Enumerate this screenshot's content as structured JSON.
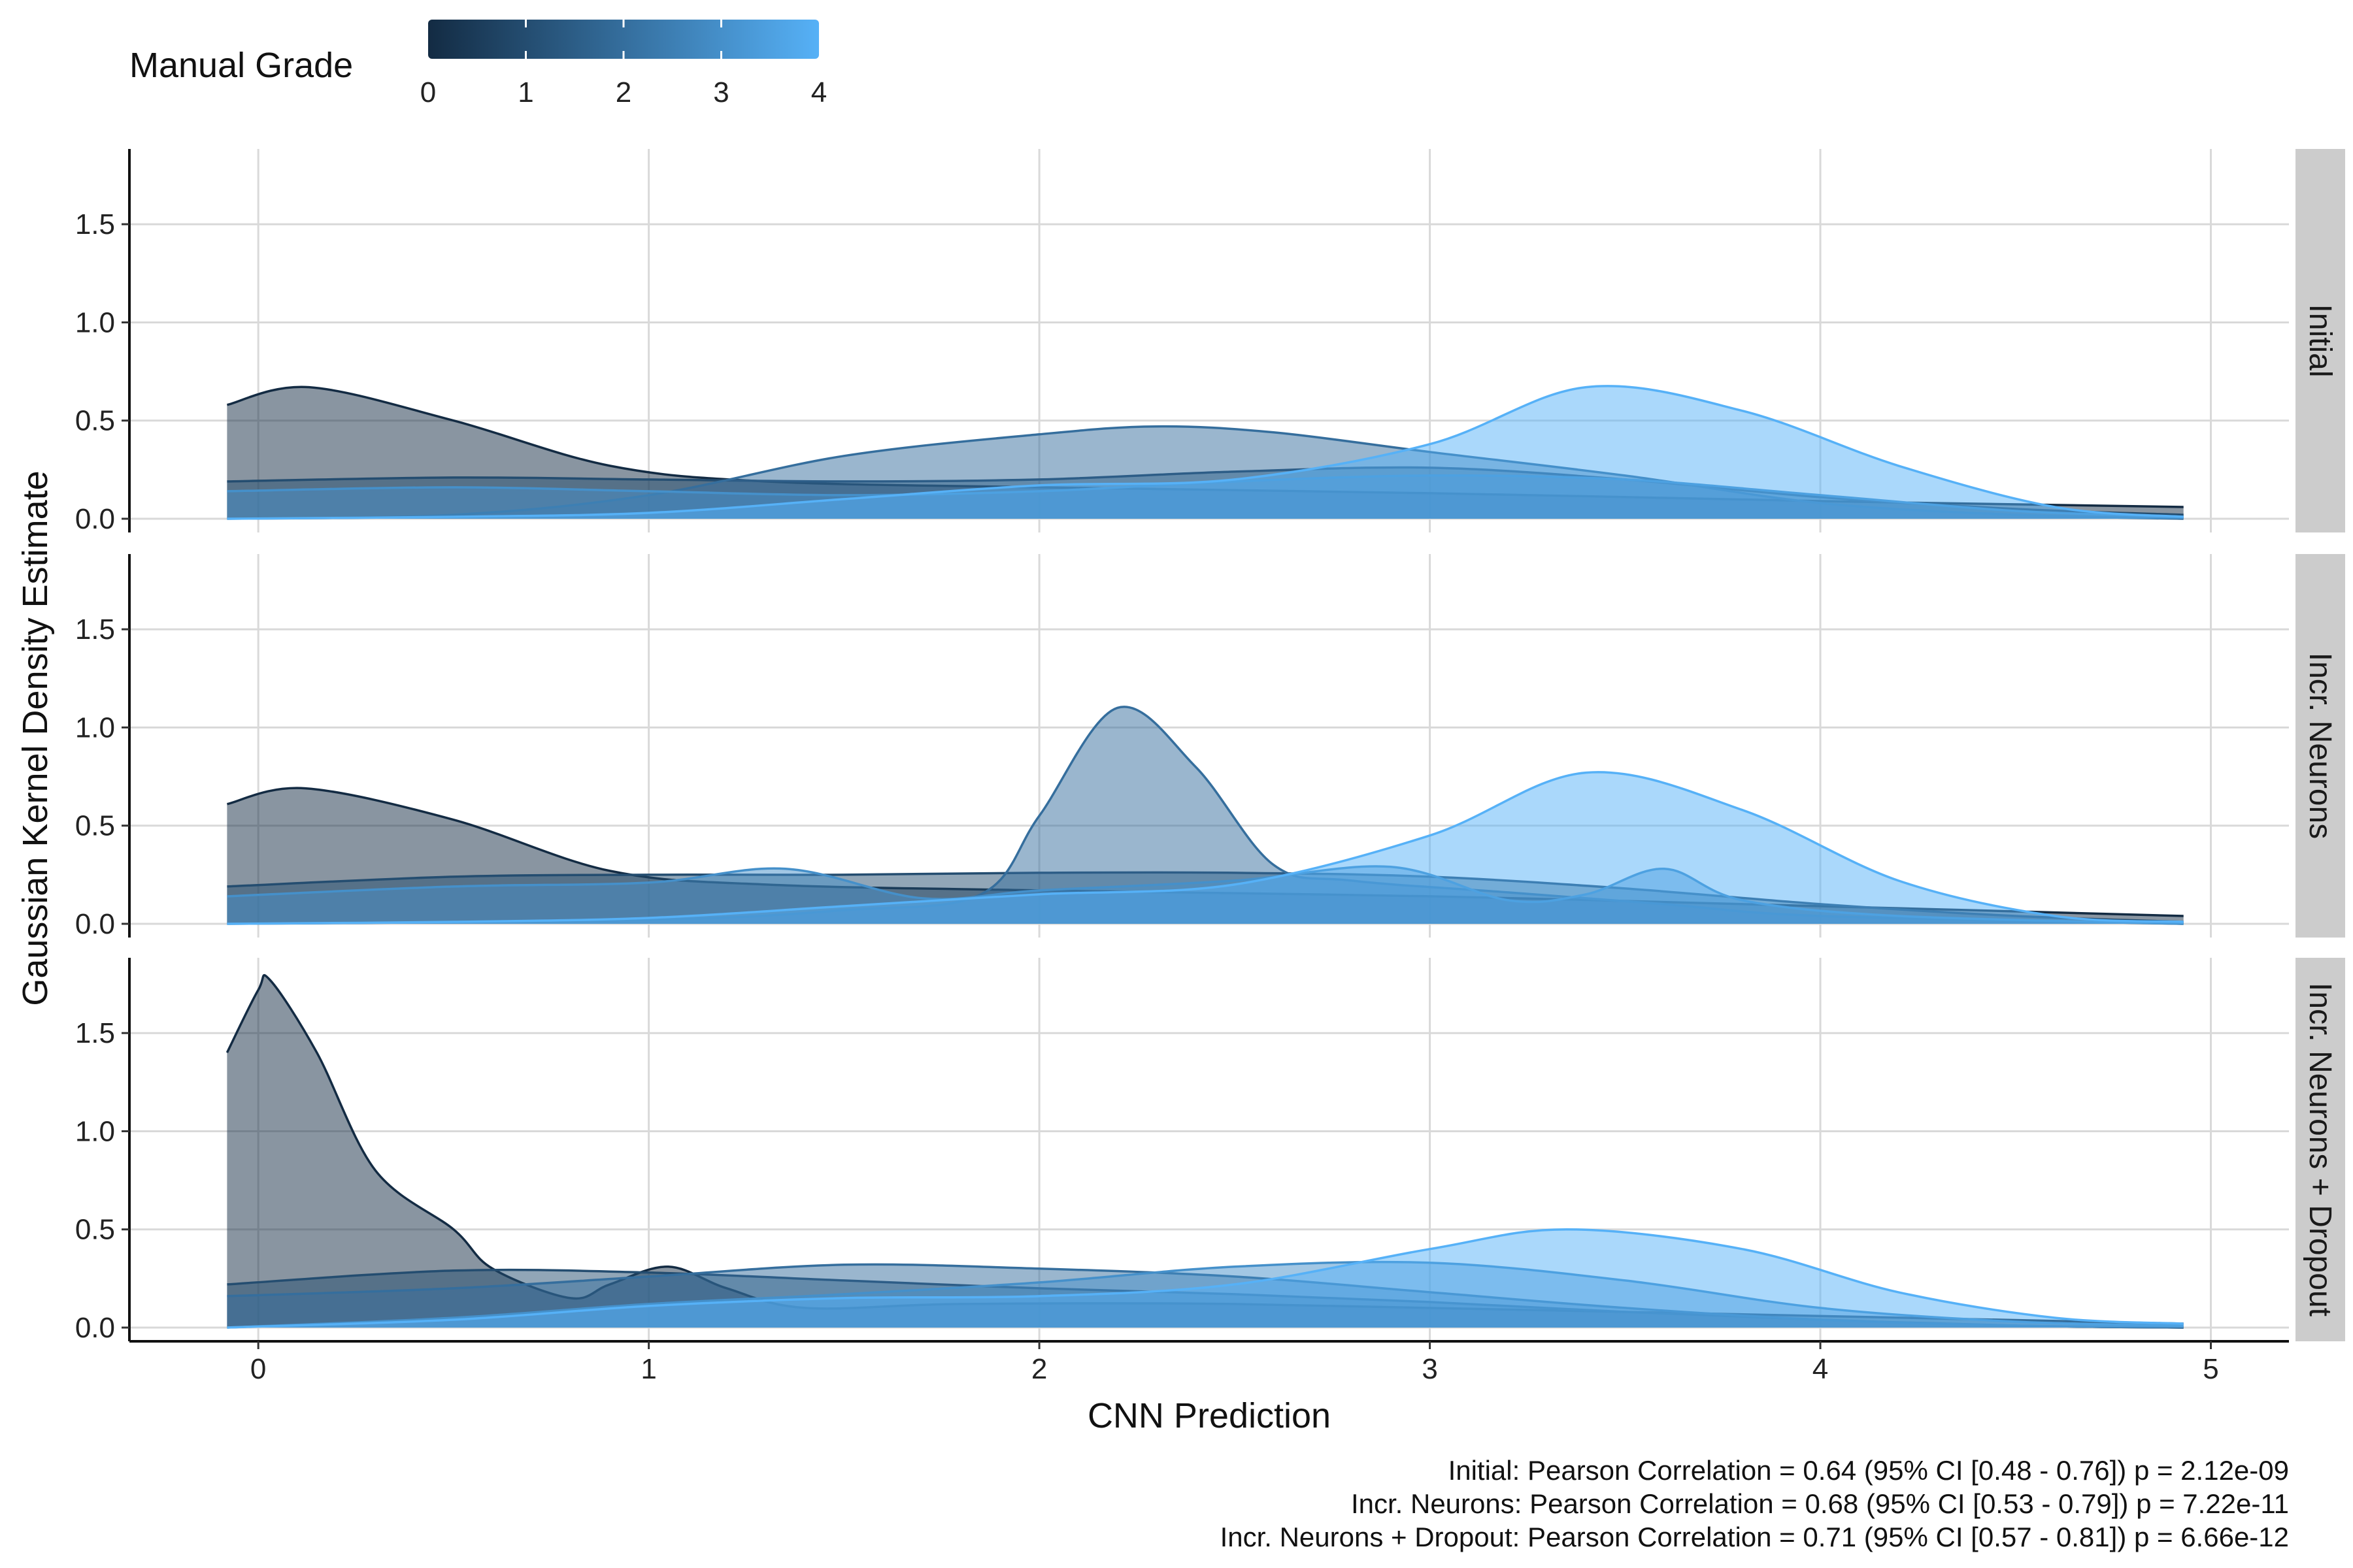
{
  "chart_data": {
    "type": "area",
    "subtype": "density",
    "xlabel": "CNN Prediction",
    "ylabel": "Gaussian Kernel Density Estimate",
    "xlim": [
      -0.33,
      5.2
    ],
    "ylim": [
      0,
      1.85
    ],
    "x_ticks": [
      "0",
      "1",
      "2",
      "3",
      "4",
      "5"
    ],
    "y_ticks": [
      "0.0",
      "0.5",
      "1.0",
      "1.5"
    ],
    "grid": true,
    "legend": {
      "title": "Manual Grade",
      "type": "colorbar",
      "placement": "top-left",
      "ticks": [
        "0",
        "1",
        "2",
        "3",
        "4"
      ],
      "color_low": "#132B43",
      "color_high": "#56B1F7"
    },
    "panels": [
      {
        "label": "Initial",
        "series": [
          {
            "grade": 0,
            "x": [
              -0.08,
              0.13,
              0.5,
              0.9,
              1.3,
              2.0,
              3.0,
              4.0,
              4.93
            ],
            "y": [
              0.58,
              0.67,
              0.5,
              0.27,
              0.19,
              0.16,
              0.13,
              0.09,
              0.06
            ]
          },
          {
            "grade": 1,
            "x": [
              -0.08,
              0.5,
              1.0,
              1.5,
              2.0,
              2.5,
              3.0,
              3.5,
              4.0,
              4.5,
              4.93
            ],
            "y": [
              0.19,
              0.21,
              0.2,
              0.19,
              0.2,
              0.24,
              0.26,
              0.2,
              0.11,
              0.05,
              0.02
            ]
          },
          {
            "grade": 2,
            "x": [
              -0.08,
              0.5,
              1.0,
              1.5,
              2.0,
              2.3,
              2.6,
              3.0,
              3.5,
              4.0,
              4.5,
              4.93
            ],
            "y": [
              0.0,
              0.02,
              0.12,
              0.32,
              0.43,
              0.47,
              0.44,
              0.34,
              0.22,
              0.08,
              0.02,
              0.0
            ]
          },
          {
            "grade": 3,
            "x": [
              -0.08,
              0.5,
              1.0,
              1.5,
              2.0,
              2.5,
              3.0,
              3.5,
              4.0,
              4.5,
              4.93
            ],
            "y": [
              0.14,
              0.16,
              0.14,
              0.12,
              0.14,
              0.19,
              0.22,
              0.2,
              0.12,
              0.04,
              0.01
            ]
          },
          {
            "grade": 4,
            "x": [
              -0.08,
              0.5,
              1.0,
              1.5,
              2.0,
              2.5,
              3.0,
              3.4,
              3.8,
              4.2,
              4.6,
              4.93
            ],
            "y": [
              0.0,
              0.01,
              0.03,
              0.1,
              0.17,
              0.2,
              0.38,
              0.67,
              0.55,
              0.27,
              0.06,
              0.01
            ]
          }
        ]
      },
      {
        "label": "Incr. Neurons",
        "series": [
          {
            "grade": 0,
            "x": [
              -0.08,
              0.12,
              0.5,
              0.9,
              1.3,
              2.0,
              3.0,
              4.0,
              4.93
            ],
            "y": [
              0.61,
              0.69,
              0.53,
              0.27,
              0.2,
              0.17,
              0.14,
              0.09,
              0.04
            ]
          },
          {
            "grade": 1,
            "x": [
              -0.08,
              0.5,
              1.0,
              1.5,
              2.0,
              2.5,
              3.0,
              3.5,
              4.0,
              4.5,
              4.93
            ],
            "y": [
              0.19,
              0.24,
              0.25,
              0.25,
              0.26,
              0.26,
              0.24,
              0.18,
              0.1,
              0.04,
              0.01
            ]
          },
          {
            "grade": 2,
            "x": [
              -0.08,
              1.0,
              1.5,
              1.85,
              2.0,
              2.2,
              2.4,
              2.6,
              2.8,
              3.2,
              3.6,
              4.0,
              4.93
            ],
            "y": [
              0.0,
              0.02,
              0.07,
              0.15,
              0.55,
              1.1,
              0.8,
              0.3,
              0.22,
              0.16,
              0.1,
              0.04,
              0.0
            ]
          },
          {
            "grade": 3,
            "x": [
              -0.08,
              0.5,
              1.0,
              1.35,
              1.7,
              2.0,
              2.5,
              2.9,
              3.2,
              3.4,
              3.6,
              3.8,
              4.2,
              4.93
            ],
            "y": [
              0.14,
              0.19,
              0.21,
              0.28,
              0.13,
              0.17,
              0.22,
              0.29,
              0.12,
              0.15,
              0.28,
              0.12,
              0.04,
              0.0
            ]
          },
          {
            "grade": 4,
            "x": [
              -0.08,
              0.5,
              1.0,
              1.5,
              2.0,
              2.5,
              3.0,
              3.4,
              3.8,
              4.2,
              4.6,
              4.93
            ],
            "y": [
              0.0,
              0.01,
              0.03,
              0.09,
              0.15,
              0.2,
              0.45,
              0.77,
              0.58,
              0.22,
              0.04,
              0.01
            ]
          }
        ]
      },
      {
        "label": "Incr. Neurons + Dropout",
        "series": [
          {
            "grade": 0,
            "x": [
              -0.08,
              0.0,
              0.03,
              0.15,
              0.3,
              0.5,
              0.6,
              0.8,
              0.9,
              1.05,
              1.2,
              1.4,
              1.8,
              2.5,
              3.5,
              4.93
            ],
            "y": [
              1.4,
              1.72,
              1.77,
              1.4,
              0.8,
              0.5,
              0.3,
              0.15,
              0.22,
              0.31,
              0.2,
              0.1,
              0.12,
              0.12,
              0.08,
              0.02
            ]
          },
          {
            "grade": 1,
            "x": [
              -0.08,
              0.5,
              1.0,
              1.5,
              2.0,
              2.5,
              3.0,
              3.5,
              4.0,
              4.5,
              4.93
            ],
            "y": [
              0.22,
              0.29,
              0.28,
              0.24,
              0.2,
              0.17,
              0.13,
              0.08,
              0.04,
              0.01,
              0.0
            ]
          },
          {
            "grade": 2,
            "x": [
              -0.08,
              0.5,
              1.0,
              1.5,
              2.0,
              2.5,
              3.0,
              3.5,
              4.0,
              4.5,
              4.93
            ],
            "y": [
              0.16,
              0.2,
              0.26,
              0.32,
              0.3,
              0.26,
              0.18,
              0.1,
              0.04,
              0.01,
              0.0
            ]
          },
          {
            "grade": 3,
            "x": [
              -0.08,
              0.5,
              1.0,
              1.5,
              2.0,
              2.5,
              3.0,
              3.5,
              4.0,
              4.5,
              4.93
            ],
            "y": [
              0.0,
              0.05,
              0.12,
              0.17,
              0.23,
              0.31,
              0.33,
              0.24,
              0.1,
              0.03,
              0.01
            ]
          },
          {
            "grade": 4,
            "x": [
              -0.08,
              0.5,
              1.0,
              1.5,
              2.0,
              2.5,
              3.0,
              3.35,
              3.8,
              4.2,
              4.6,
              4.93
            ],
            "y": [
              0.0,
              0.04,
              0.11,
              0.15,
              0.16,
              0.22,
              0.4,
              0.5,
              0.4,
              0.18,
              0.05,
              0.02
            ]
          }
        ]
      }
    ],
    "caption": [
      "Initial: Pearson Correlation = 0.64 (95% CI [0.48 - 0.76]) p = 2.12e-09",
      "Incr. Neurons: Pearson Correlation = 0.68 (95% CI [0.53 - 0.79]) p = 7.22e-11",
      "Incr. Neurons + Dropout: Pearson Correlation = 0.71 (95% CI [0.57 - 0.81]) p = 6.66e-12"
    ]
  }
}
